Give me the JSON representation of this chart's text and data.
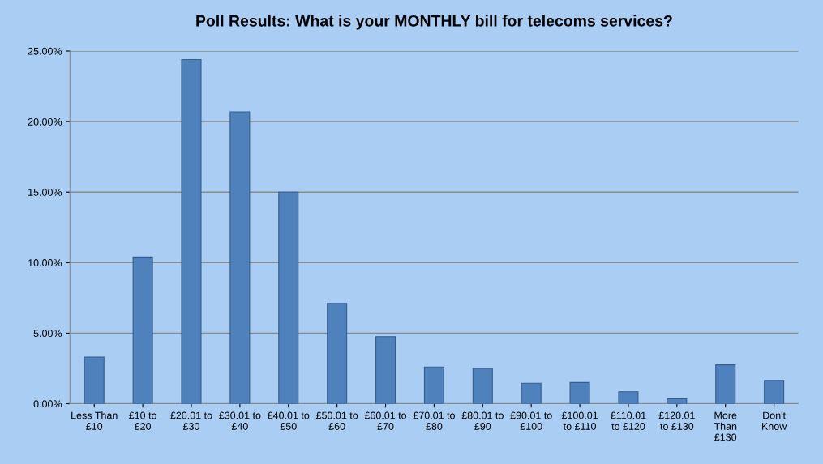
{
  "chart_data": {
    "type": "bar",
    "title": "Poll Results: What is your MONTHLY bill for telecoms services?",
    "categories": [
      "Less Than\n£10",
      "£10 to\n£20",
      "£20.01 to\n£30",
      "£30.01 to\n£40",
      "£40.01 to\n£50",
      "£50.01 to\n£60",
      "£60.01 to\n£70",
      "£70.01 to\n£80",
      "£80.01 to\n£90",
      "£90.01 to\n£100",
      "£100.01\nto £110",
      "£110.01\nto £120",
      "£120.01\nto £130",
      "More\nThan\n£130",
      "Don't\nKnow"
    ],
    "values": [
      3.3,
      10.4,
      24.4,
      20.7,
      15.0,
      7.1,
      4.75,
      2.6,
      2.5,
      1.45,
      1.5,
      0.85,
      0.35,
      2.75,
      1.65
    ],
    "color": "#4f81bd",
    "ylim": [
      0,
      25
    ],
    "yticks": [
      {
        "value": 0,
        "label": "0.00%"
      },
      {
        "value": 5,
        "label": "5.00%"
      },
      {
        "value": 10,
        "label": "10.00%"
      },
      {
        "value": 15,
        "label": "15.00%"
      },
      {
        "value": 20,
        "label": "20.00%"
      },
      {
        "value": 25,
        "label": "25.00%"
      }
    ],
    "grid": "y"
  }
}
